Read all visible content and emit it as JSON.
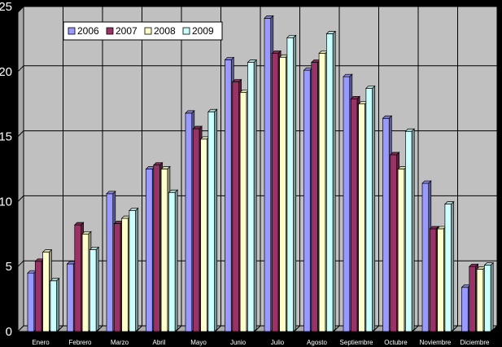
{
  "chart_data": {
    "type": "bar",
    "title": "",
    "xlabel": "",
    "ylabel": "",
    "ylim": [
      0,
      25
    ],
    "yticks": [
      "0",
      "5",
      "10",
      "15",
      "20",
      "25"
    ],
    "grid": true,
    "legend_position": "top-left",
    "categories": [
      "Enero",
      "Febrero",
      "Marzo",
      "Abril",
      "Mayo",
      "Junio",
      "Julio",
      "Agosto",
      "Septiembre",
      "Octubre",
      "Noviembre",
      "Diciembre"
    ],
    "series": [
      {
        "name": "2006",
        "color": "#9999ff",
        "values": [
          4.5,
          5.2,
          10.6,
          12.5,
          16.8,
          20.9,
          24.1,
          20.1,
          19.6,
          16.4,
          11.4,
          3.4
        ]
      },
      {
        "name": "2007",
        "color": "#993366",
        "values": [
          5.4,
          8.2,
          8.3,
          12.8,
          15.6,
          19.2,
          21.4,
          20.7,
          17.9,
          13.6,
          7.9,
          5.0
        ]
      },
      {
        "name": "2008",
        "color": "#ffffcc",
        "values": [
          6.1,
          7.5,
          8.7,
          12.5,
          14.8,
          18.4,
          21.1,
          21.4,
          17.5,
          12.5,
          7.9,
          4.8
        ]
      },
      {
        "name": "2009",
        "color": "#ccffff",
        "values": [
          3.9,
          6.3,
          9.3,
          10.7,
          16.9,
          20.7,
          22.6,
          22.9,
          18.7,
          15.4,
          9.8,
          5.1
        ]
      }
    ]
  }
}
